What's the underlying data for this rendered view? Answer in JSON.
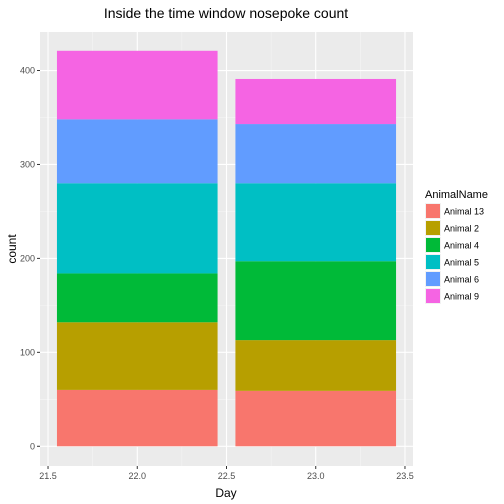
{
  "chart_data": {
    "type": "bar",
    "stacked": true,
    "title": "Inside the time window nosepoke count",
    "xlabel": "Day",
    "ylabel": "count",
    "categories": [
      22,
      23
    ],
    "xlim": [
      21.5,
      23.5
    ],
    "ylim": [
      0,
      420
    ],
    "bar_width": 0.9,
    "x_ticks": [
      "21.5",
      "22.0",
      "22.5",
      "23.0",
      "23.5"
    ],
    "y_ticks": [
      "0",
      "100",
      "200",
      "300",
      "400"
    ],
    "grid": true,
    "legend_title": "AnimalName",
    "legend_position": "right",
    "series": [
      {
        "name": "Animal 13",
        "color": "#F8766D",
        "values": [
          60,
          59
        ]
      },
      {
        "name": "Animal 2",
        "color": "#B79F00",
        "values": [
          72,
          54
        ]
      },
      {
        "name": "Animal 4",
        "color": "#00BA38",
        "values": [
          52,
          84
        ]
      },
      {
        "name": "Animal 5",
        "color": "#00BFC4",
        "values": [
          96,
          83
        ]
      },
      {
        "name": "Animal 6",
        "color": "#619CFF",
        "values": [
          68,
          63
        ]
      },
      {
        "name": "Animal 9",
        "color": "#F564E3",
        "values": [
          73,
          48
        ]
      }
    ]
  }
}
